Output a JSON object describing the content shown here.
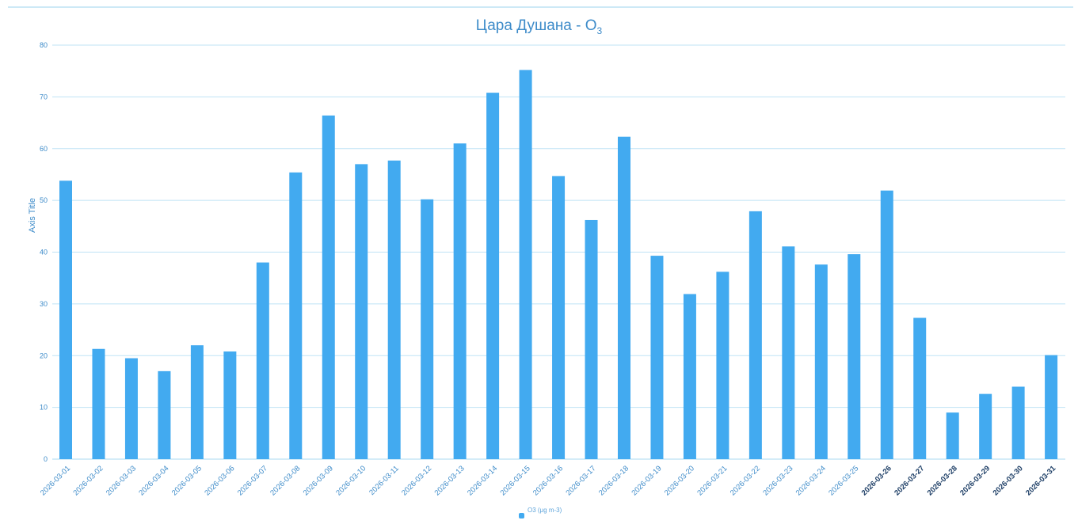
{
  "chart_data": {
    "type": "bar",
    "title": "Цара Душана - O",
    "title_subscript": "3",
    "ylabel": "Axis Title",
    "xlabel": "",
    "ylim": [
      0,
      80
    ],
    "yticks": [
      0,
      10,
      20,
      30,
      40,
      50,
      60,
      70,
      80
    ],
    "grid": true,
    "legend_position": "bottom-center",
    "bar_color": "#42aaf0",
    "categories": [
      "2026-03-01",
      "2026-03-02",
      "2026-03-03",
      "2026-03-04",
      "2026-03-05",
      "2026-03-06",
      "2026-03-07",
      "2026-03-08",
      "2026-03-09",
      "2026-03-10",
      "2026-03-11",
      "2026-03-12",
      "2026-03-13",
      "2026-03-14",
      "2026-03-15",
      "2026-03-16",
      "2026-03-17",
      "2026-03-18",
      "2026-03-19",
      "2026-03-20",
      "2026-03-21",
      "2026-03-22",
      "2026-03-23",
      "2026-03-24",
      "2026-03-25",
      "2026-03-26",
      "2026-03-27",
      "2026-03-28",
      "2026-03-29",
      "2026-03-30",
      "2026-03-31"
    ],
    "series": [
      {
        "name": "O3 (μg m-3)",
        "values": [
          53.8,
          21.3,
          19.5,
          17.0,
          22.0,
          20.8,
          38.0,
          55.4,
          66.4,
          57.0,
          57.7,
          50.2,
          61.0,
          70.8,
          75.2,
          54.7,
          46.2,
          62.3,
          39.3,
          31.9,
          36.2,
          47.9,
          41.1,
          37.6,
          39.6,
          51.9,
          27.3,
          9.0,
          12.6,
          14.0,
          20.1
        ]
      }
    ]
  }
}
